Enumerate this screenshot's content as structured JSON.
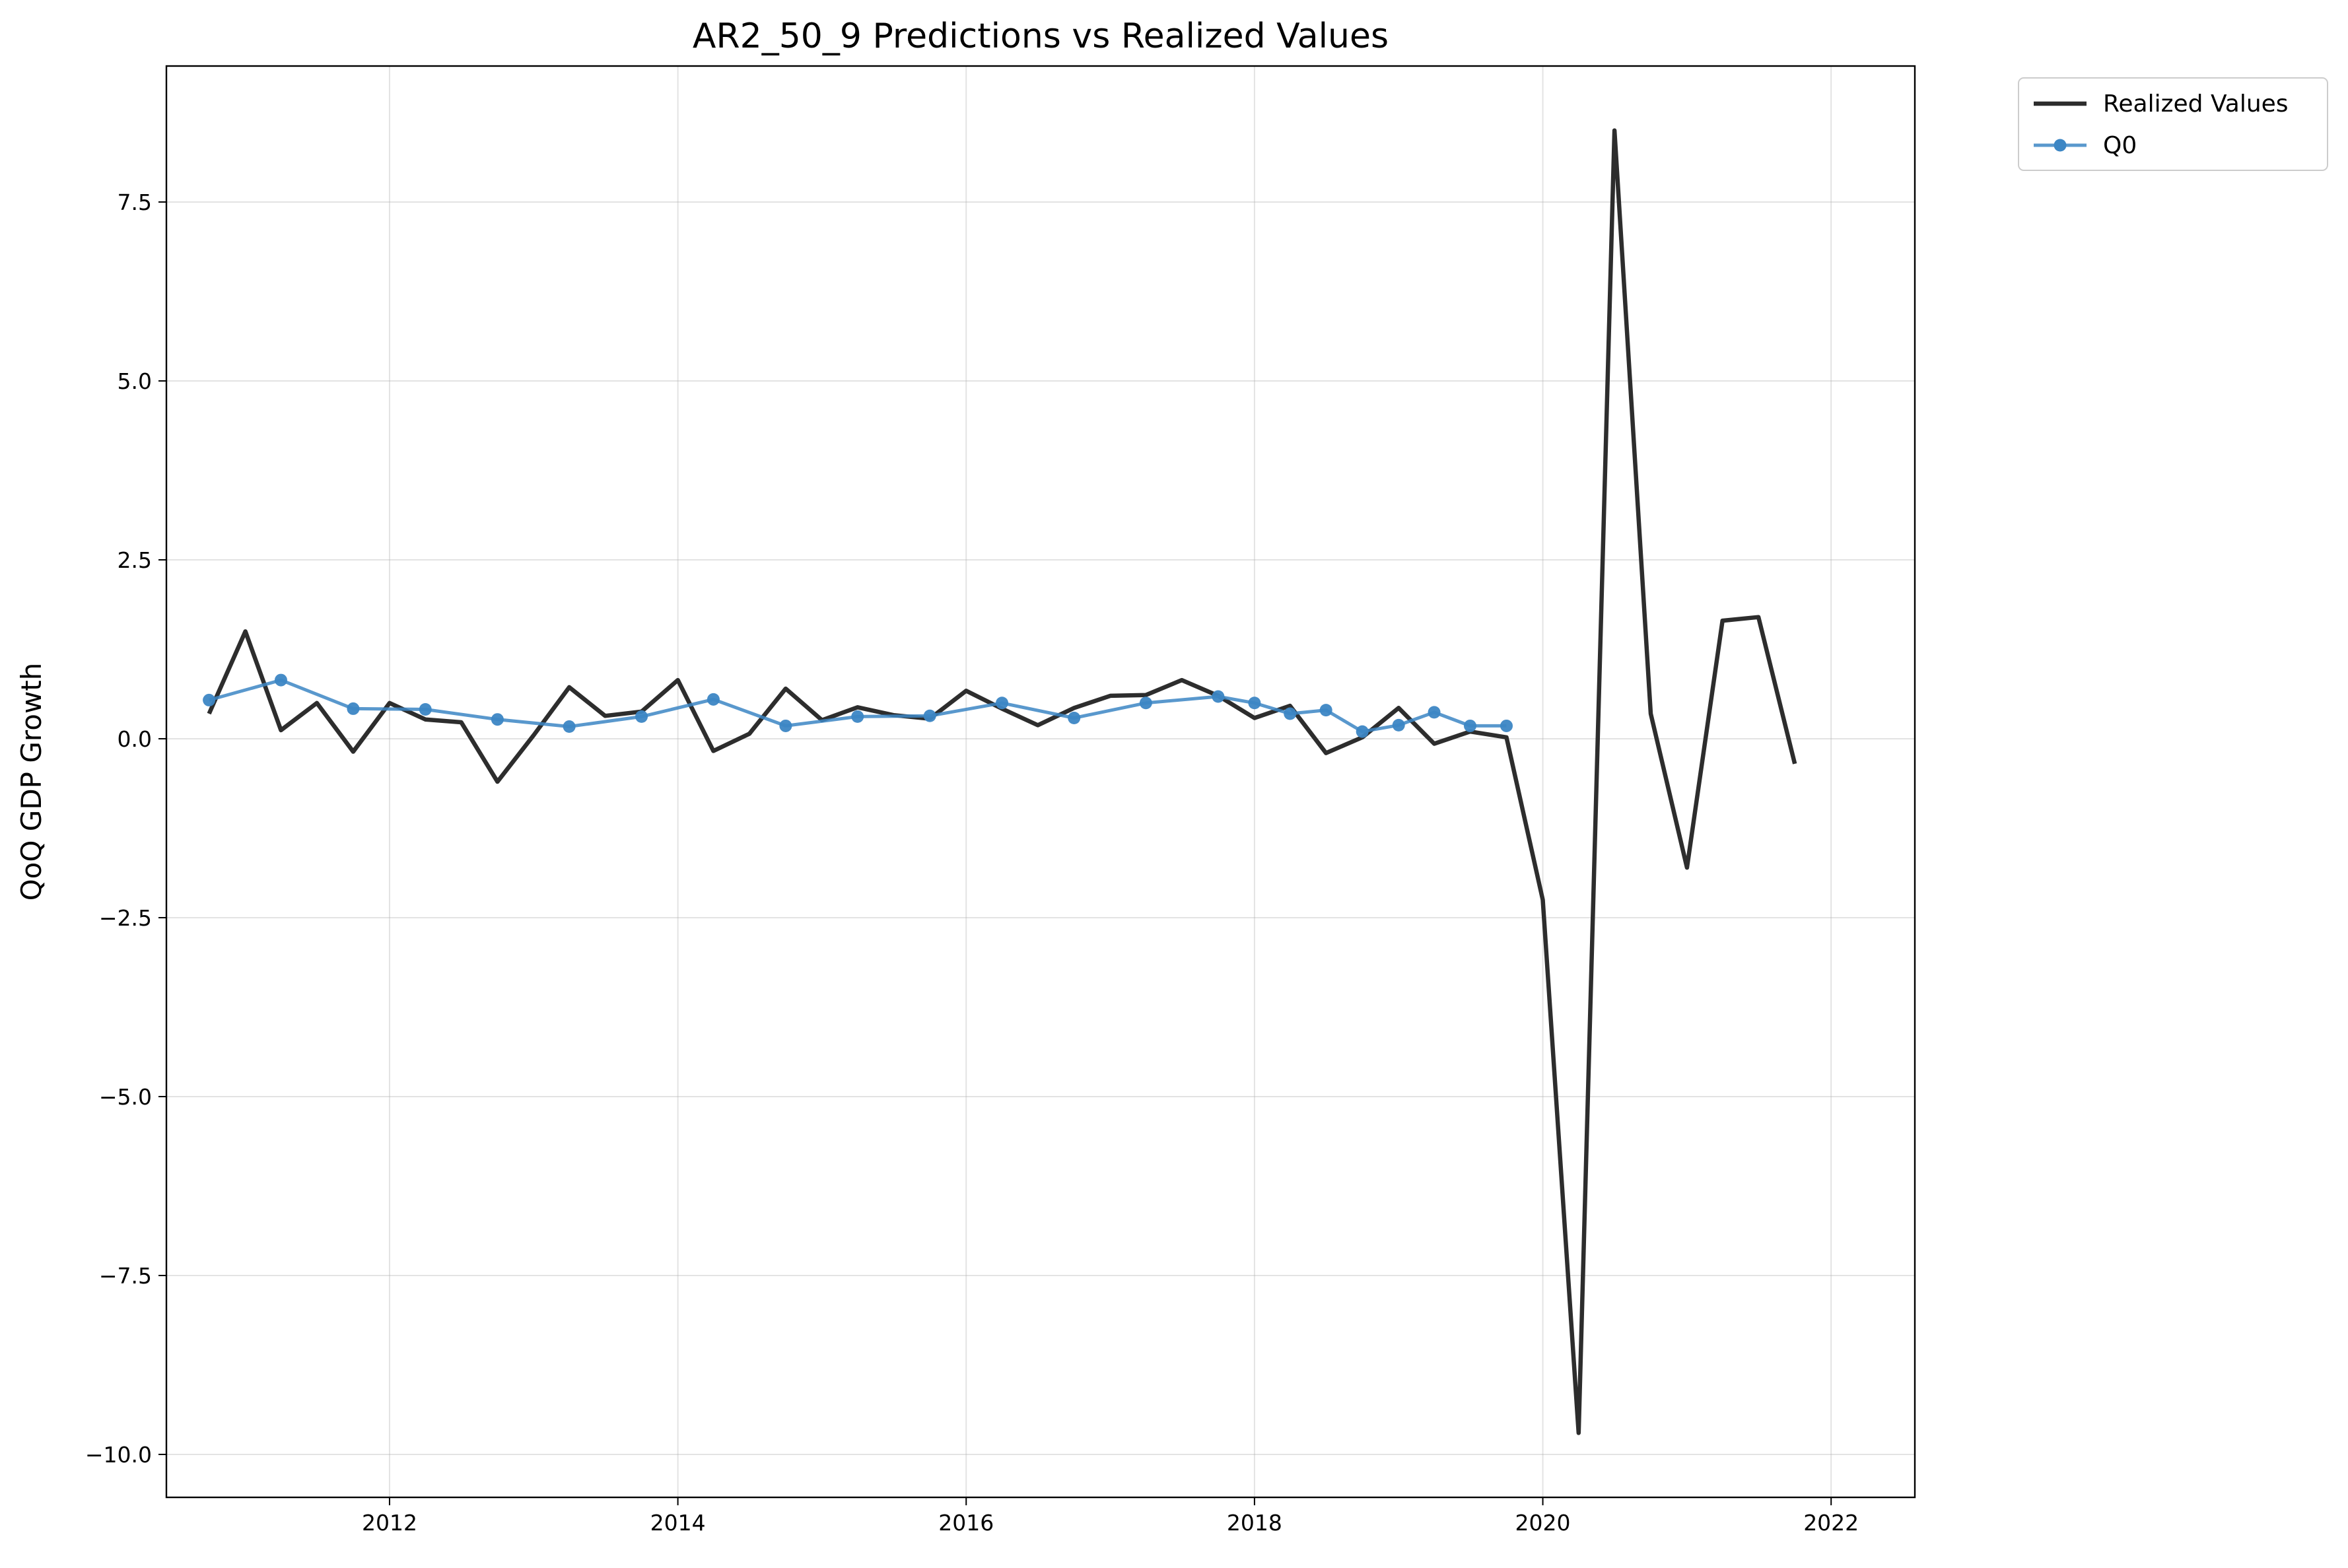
{
  "chart_data": {
    "type": "line",
    "title": "AR2_50_9 Predictions vs Realized Values",
    "xlabel": "",
    "ylabel": "QoQ GDP Growth",
    "xlim": [
      "2010-06-15",
      "2022-08-01"
    ],
    "ylim": [
      -10.6,
      9.4
    ],
    "x_ticks": [
      "2012",
      "2014",
      "2016",
      "2018",
      "2020",
      "2022"
    ],
    "y_ticks": [
      -10.0,
      -7.5,
      -5.0,
      -2.5,
      0.0,
      2.5,
      5.0,
      7.5
    ],
    "y_tick_labels": [
      "−10.0",
      "−7.5",
      "−5.0",
      "−2.5",
      "0.0",
      "2.5",
      "5.0",
      "7.5"
    ],
    "grid": true,
    "legend_position": "outside-top-right",
    "series": [
      {
        "name": "Realized Values",
        "color": "#2d2d2d",
        "marker": "none",
        "points": [
          [
            "2010-10-01",
            0.35
          ],
          [
            "2011-01-01",
            1.5
          ],
          [
            "2011-04-01",
            0.12
          ],
          [
            "2011-07-01",
            0.5
          ],
          [
            "2011-10-01",
            -0.18
          ],
          [
            "2012-01-01",
            0.5
          ],
          [
            "2012-04-01",
            0.27
          ],
          [
            "2012-07-01",
            0.23
          ],
          [
            "2012-10-01",
            -0.6
          ],
          [
            "2013-01-01",
            0.05
          ],
          [
            "2013-04-01",
            0.72
          ],
          [
            "2013-07-01",
            0.32
          ],
          [
            "2013-10-01",
            0.38
          ],
          [
            "2014-01-01",
            0.82
          ],
          [
            "2014-04-01",
            -0.17
          ],
          [
            "2014-07-01",
            0.07
          ],
          [
            "2014-10-01",
            0.7
          ],
          [
            "2015-01-01",
            0.26
          ],
          [
            "2015-04-01",
            0.44
          ],
          [
            "2015-07-01",
            0.33
          ],
          [
            "2015-10-01",
            0.28
          ],
          [
            "2016-01-01",
            0.67
          ],
          [
            "2016-04-01",
            0.42
          ],
          [
            "2016-07-01",
            0.19
          ],
          [
            "2016-10-01",
            0.43
          ],
          [
            "2017-01-01",
            0.6
          ],
          [
            "2017-04-01",
            0.61
          ],
          [
            "2017-07-01",
            0.82
          ],
          [
            "2017-10-01",
            0.6
          ],
          [
            "2018-01-01",
            0.29
          ],
          [
            "2018-04-01",
            0.46
          ],
          [
            "2018-07-01",
            -0.2
          ],
          [
            "2018-10-01",
            0.02
          ],
          [
            "2019-01-01",
            0.43
          ],
          [
            "2019-04-01",
            -0.07
          ],
          [
            "2019-07-01",
            0.1
          ],
          [
            "2019-10-01",
            0.02
          ],
          [
            "2020-01-01",
            -2.25
          ],
          [
            "2020-04-01",
            -9.7
          ],
          [
            "2020-07-01",
            8.5
          ],
          [
            "2020-10-01",
            0.35
          ],
          [
            "2021-01-01",
            -1.8
          ],
          [
            "2021-04-01",
            1.65
          ],
          [
            "2021-07-01",
            1.7
          ],
          [
            "2021-10-01",
            -0.35
          ]
        ]
      },
      {
        "name": "Q0",
        "color": "#3c86c4",
        "marker": "circle",
        "points": [
          [
            "2010-10-01",
            0.54
          ],
          [
            "2011-04-01",
            0.82
          ],
          [
            "2011-10-01",
            0.42
          ],
          [
            "2012-04-01",
            0.41
          ],
          [
            "2012-10-01",
            0.27
          ],
          [
            "2013-04-01",
            0.17
          ],
          [
            "2013-10-01",
            0.31
          ],
          [
            "2014-04-01",
            0.55
          ],
          [
            "2014-10-01",
            0.18
          ],
          [
            "2015-04-01",
            0.31
          ],
          [
            "2015-10-01",
            0.32
          ],
          [
            "2016-04-01",
            0.5
          ],
          [
            "2016-10-01",
            0.29
          ],
          [
            "2017-04-01",
            0.5
          ],
          [
            "2017-10-01",
            0.59
          ],
          [
            "2018-01-01",
            0.5
          ],
          [
            "2018-04-01",
            0.35
          ],
          [
            "2018-07-01",
            0.4
          ],
          [
            "2018-10-01",
            0.1
          ],
          [
            "2019-01-01",
            0.19
          ],
          [
            "2019-04-01",
            0.37
          ],
          [
            "2019-07-01",
            0.18
          ],
          [
            "2019-10-01",
            0.18
          ]
        ]
      }
    ]
  }
}
